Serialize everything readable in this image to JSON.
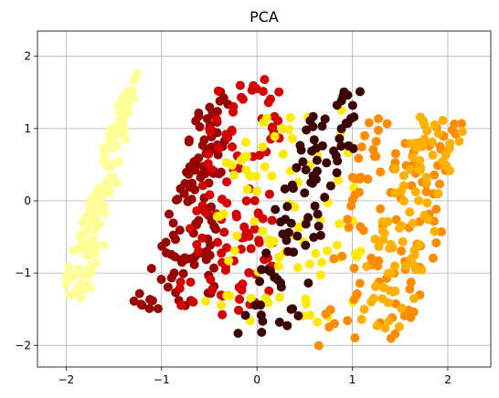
{
  "chart_data": {
    "type": "scatter",
    "title": "PCA",
    "xlabel": "",
    "ylabel": "",
    "xlim": [
      -2.3,
      2.45
    ],
    "ylim": [
      -2.3,
      2.35
    ],
    "xticks": [
      -2,
      -1,
      0,
      1,
      2
    ],
    "yticks": [
      -2,
      -1,
      0,
      1,
      2
    ],
    "xtick_labels": [
      "−2",
      "−1",
      "0",
      "1",
      "2"
    ],
    "ytick_labels": [
      "−2",
      "−1",
      "0",
      "1",
      "2"
    ],
    "grid": true,
    "marker_colors": [
      "#ffff99",
      "#990000",
      "#d40000",
      "#ffea00",
      "#3d0000",
      "#ff8c00",
      "#ffb000"
    ],
    "clusters": [
      {
        "color": "#ffff99",
        "corners": [
          [
            -2.05,
            -1.3
          ],
          [
            -1.75,
            -1.3
          ],
          [
            -1.2,
            2.1
          ],
          [
            -0.95,
            2.05
          ],
          [
            -1.5,
            1.0
          ]
        ],
        "n": 140
      },
      {
        "color": "#990000",
        "corners": [
          [
            -1.3,
            -1.6
          ],
          [
            -0.45,
            -1.6
          ],
          [
            -0.35,
            1.5
          ],
          [
            -0.5,
            1.5
          ]
        ],
        "n": 120
      },
      {
        "color": "#d40000",
        "corners": [
          [
            -0.95,
            -1.55
          ],
          [
            0.2,
            -1.55
          ],
          [
            0.2,
            1.7
          ],
          [
            -0.35,
            1.7
          ]
        ],
        "n": 110
      },
      {
        "color": "#ffea00",
        "corners": [
          [
            -0.6,
            -1.7
          ],
          [
            1.1,
            -1.7
          ],
          [
            1.1,
            1.3
          ],
          [
            -0.3,
            1.3
          ]
        ],
        "n": 90
      },
      {
        "color": "#3d0000",
        "corners": [
          [
            -0.2,
            -1.85
          ],
          [
            0.35,
            -1.85
          ],
          [
            1.2,
            1.5
          ],
          [
            0.6,
            1.5
          ]
        ],
        "n": 90
      },
      {
        "color": "#ff8c00",
        "corners": [
          [
            0.55,
            -2.0
          ],
          [
            1.6,
            -2.0
          ],
          [
            2.2,
            1.2
          ],
          [
            1.1,
            1.2
          ]
        ],
        "n": 110
      },
      {
        "color": "#ffb000",
        "corners": [
          [
            1.0,
            -1.75
          ],
          [
            1.5,
            -1.75
          ],
          [
            2.2,
            1.15
          ],
          [
            1.6,
            1.15
          ]
        ],
        "n": 90
      }
    ]
  }
}
